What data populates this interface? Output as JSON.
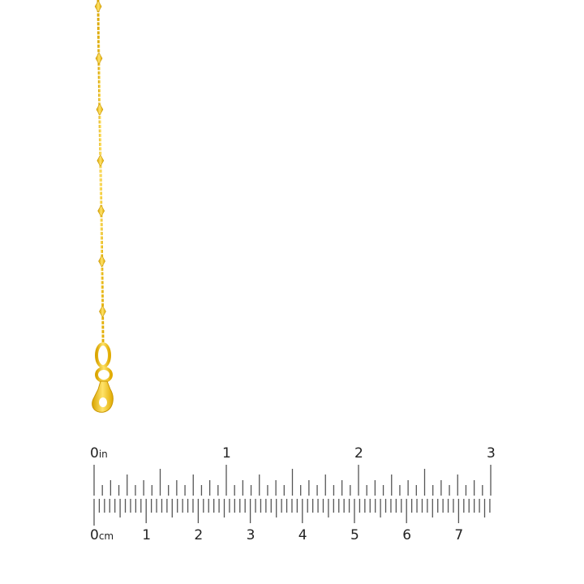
{
  "product": {
    "type": "gold chain with lobster clasp",
    "metal_color": "#F2C21B"
  },
  "ruler": {
    "inch_labels": [
      "0",
      "1",
      "2",
      "3"
    ],
    "inch_unit": "in",
    "cm_labels": [
      "0",
      "1",
      "2",
      "3",
      "4",
      "5",
      "6",
      "7"
    ],
    "cm_unit": "cm",
    "tick_color": "#555555"
  }
}
